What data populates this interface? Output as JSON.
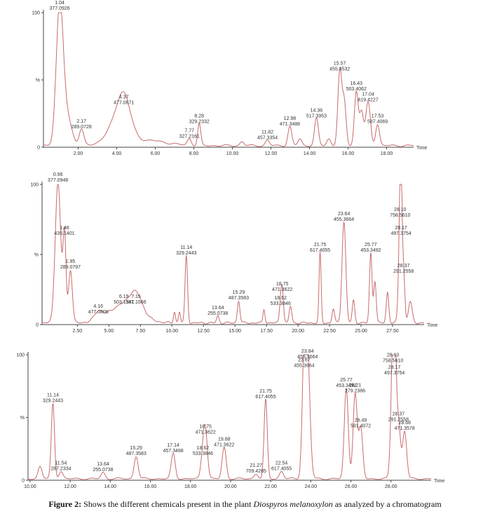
{
  "caption": {
    "label": "Figure 2:",
    "text_before": "Shows the different chemicals present in the plant",
    "species": "Diospyros melanoxylon",
    "text_after": "as analyzed by a chromatogram"
  },
  "chart_data": [
    {
      "type": "line",
      "title": "",
      "xlabel": "Time",
      "ylabel": "%",
      "y_tick_labels": [
        "100",
        "%",
        "0"
      ],
      "xlim": [
        0.2,
        19.4
      ],
      "ylim": [
        0,
        100
      ],
      "x_ticks": [
        2.0,
        4.0,
        6.0,
        8.0,
        10.0,
        12.0,
        14.0,
        16.0,
        18.0
      ],
      "x_tick_labels": [
        "2.00",
        "4.00",
        "6.00",
        "8.00",
        "10.00",
        "12.00",
        "14.00",
        "16.00",
        "18.00"
      ],
      "peaks": [
        {
          "rt": 1.04,
          "mz": "377.0926",
          "height": 100,
          "width": 0.18
        },
        {
          "rt": 1.4,
          "mz": "",
          "height": 22,
          "width": 0.25
        },
        {
          "rt": 2.17,
          "mz": "289.0728",
          "height": 12,
          "width": 0.12
        },
        {
          "rt": 4.37,
          "mz": "477.0671",
          "height": 30,
          "width": 0.35
        },
        {
          "rt": 3.9,
          "mz": "",
          "height": 12,
          "width": 0.5
        },
        {
          "rt": 5.5,
          "mz": "",
          "height": 4,
          "width": 1.0
        },
        {
          "rt": 7.77,
          "mz": "327.2161",
          "height": 5,
          "width": 0.1
        },
        {
          "rt": 8.28,
          "mz": "329.2332",
          "height": 16,
          "width": 0.08
        },
        {
          "rt": 10.5,
          "mz": "",
          "height": 3,
          "width": 0.1
        },
        {
          "rt": 11.82,
          "mz": "457.3354",
          "height": 4,
          "width": 0.1
        },
        {
          "rt": 12.98,
          "mz": "471.3488",
          "height": 14,
          "width": 0.1
        },
        {
          "rt": 13.5,
          "mz": "",
          "height": 5,
          "width": 0.1
        },
        {
          "rt": 14.36,
          "mz": "517.3953",
          "height": 20,
          "width": 0.1
        },
        {
          "rt": 15.0,
          "mz": "",
          "height": 5,
          "width": 0.1
        },
        {
          "rt": 15.57,
          "mz": "455.3532",
          "height": 55,
          "width": 0.1
        },
        {
          "rt": 15.8,
          "mz": "",
          "height": 32,
          "width": 0.1
        },
        {
          "rt": 16.43,
          "mz": "503.4062",
          "height": 40,
          "width": 0.1
        },
        {
          "rt": 16.7,
          "mz": "",
          "height": 25,
          "width": 0.1
        },
        {
          "rt": 17.04,
          "mz": "619.4227",
          "height": 32,
          "width": 0.12
        },
        {
          "rt": 17.53,
          "mz": "587.4069",
          "height": 16,
          "width": 0.1
        }
      ]
    },
    {
      "type": "line",
      "title": "",
      "xlabel": "Time",
      "ylabel": "%",
      "y_tick_labels": [
        "100",
        "%",
        "0"
      ],
      "xlim": [
        -0.3,
        30.0
      ],
      "ylim": [
        0,
        100
      ],
      "x_ticks": [
        2.5,
        5.0,
        7.5,
        10.0,
        12.5,
        15.0,
        17.5,
        20.0,
        22.5,
        25.0,
        27.5
      ],
      "x_tick_labels": [
        "2.50",
        "5.00",
        "7.50",
        "10.00",
        "12.50",
        "15.00",
        "17.50",
        "20.00",
        "22.50",
        "25.00",
        "27.50"
      ],
      "peaks": [
        {
          "rt": 0.96,
          "mz": "377.0948",
          "height": 100,
          "width": 0.22
        },
        {
          "rt": 1.48,
          "mz": "435.1401",
          "height": 62,
          "width": 0.12
        },
        {
          "rt": 1.95,
          "mz": "289.0797",
          "height": 38,
          "width": 0.15
        },
        {
          "rt": 4.16,
          "mz": "477.0806",
          "height": 6,
          "width": 0.3
        },
        {
          "rt": 6.19,
          "mz": "503.1341",
          "height": 13,
          "width": 1.2
        },
        {
          "rt": 7.15,
          "mz": "587.1566",
          "height": 13,
          "width": 0.5
        },
        {
          "rt": 10.2,
          "mz": "",
          "height": 8,
          "width": 0.08
        },
        {
          "rt": 10.6,
          "mz": "",
          "height": 8,
          "width": 0.08
        },
        {
          "rt": 11.14,
          "mz": "329.2443",
          "height": 48,
          "width": 0.1
        },
        {
          "rt": 13.64,
          "mz": "255.0738",
          "height": 5,
          "width": 0.1
        },
        {
          "rt": 15.29,
          "mz": "487.3583",
          "height": 16,
          "width": 0.1
        },
        {
          "rt": 17.3,
          "mz": "",
          "height": 10,
          "width": 0.08
        },
        {
          "rt": 18.62,
          "mz": "533.3846",
          "height": 12,
          "width": 0.1
        },
        {
          "rt": 18.75,
          "mz": "471.3622",
          "height": 22,
          "width": 0.1
        },
        {
          "rt": 19.4,
          "mz": "",
          "height": 12,
          "width": 0.1
        },
        {
          "rt": 21.75,
          "mz": "617.4055",
          "height": 50,
          "width": 0.08
        },
        {
          "rt": 22.8,
          "mz": "",
          "height": 10,
          "width": 0.1
        },
        {
          "rt": 23.64,
          "mz": "455.3664",
          "height": 72,
          "width": 0.15
        },
        {
          "rt": 24.4,
          "mz": "",
          "height": 16,
          "width": 0.1
        },
        {
          "rt": 25.77,
          "mz": "453.3492",
          "height": 50,
          "width": 0.1
        },
        {
          "rt": 26.1,
          "mz": "",
          "height": 30,
          "width": 0.1
        },
        {
          "rt": 27.1,
          "mz": "",
          "height": 22,
          "width": 0.1
        },
        {
          "rt": 28.1,
          "mz": "758.5610",
          "height": 75,
          "width": 0.12
        },
        {
          "rt": 28.17,
          "mz": "497.3754",
          "height": 62,
          "width": 0.08
        },
        {
          "rt": 28.37,
          "mz": "291.2558",
          "height": 35,
          "width": 0.1
        },
        {
          "rt": 28.9,
          "mz": "",
          "height": 15,
          "width": 0.15
        }
      ]
    },
    {
      "type": "line",
      "title": "",
      "xlabel": "Time",
      "ylabel": "%",
      "y_tick_labels": [
        "100",
        "%",
        "0"
      ],
      "xlim": [
        9.9,
        30.0
      ],
      "ylim": [
        0,
        100
      ],
      "x_ticks": [
        10.0,
        12.0,
        14.0,
        16.0,
        18.0,
        20.0,
        22.0,
        24.0,
        26.0,
        28.0
      ],
      "x_tick_labels": [
        "10.00",
        "12.00",
        "14.00",
        "16.00",
        "18.00",
        "20.00",
        "22.00",
        "24.00",
        "26.00",
        "28.00"
      ],
      "peaks": [
        {
          "rt": 10.5,
          "mz": "",
          "height": 10,
          "width": 0.1
        },
        {
          "rt": 11.14,
          "mz": "329.2443",
          "height": 60,
          "width": 0.08
        },
        {
          "rt": 11.54,
          "mz": "287.2334",
          "height": 6,
          "width": 0.1
        },
        {
          "rt": 13.64,
          "mz": "255.0738",
          "height": 5,
          "width": 0.1
        },
        {
          "rt": 15.29,
          "mz": "487.3583",
          "height": 18,
          "width": 0.1
        },
        {
          "rt": 17.14,
          "mz": "457.3488",
          "height": 20,
          "width": 0.1
        },
        {
          "rt": 18.62,
          "mz": "533.3846",
          "height": 18,
          "width": 0.1
        },
        {
          "rt": 18.75,
          "mz": "471.3622",
          "height": 35,
          "width": 0.1
        },
        {
          "rt": 19.68,
          "mz": "471.3622",
          "height": 25,
          "width": 0.1
        },
        {
          "rt": 21.27,
          "mz": "709.4285",
          "height": 4,
          "width": 0.1
        },
        {
          "rt": 21.75,
          "mz": "617.4055",
          "height": 63,
          "width": 0.08
        },
        {
          "rt": 22.54,
          "mz": "617.4055",
          "height": 6,
          "width": 0.1
        },
        {
          "rt": 23.67,
          "mz": "455.3664",
          "height": 88,
          "width": 0.1
        },
        {
          "rt": 23.84,
          "mz": "455.3664",
          "height": 95,
          "width": 0.12
        },
        {
          "rt": 25.77,
          "mz": "453.3492",
          "height": 72,
          "width": 0.1
        },
        {
          "rt": 26.21,
          "mz": "279.2386",
          "height": 68,
          "width": 0.1
        },
        {
          "rt": 26.49,
          "mz": "591.4072",
          "height": 40,
          "width": 0.1
        },
        {
          "rt": 28.1,
          "mz": "758.5610",
          "height": 92,
          "width": 0.1
        },
        {
          "rt": 28.17,
          "mz": "497.3754",
          "height": 82,
          "width": 0.08
        },
        {
          "rt": 28.37,
          "mz": "291.2558",
          "height": 45,
          "width": 0.1
        },
        {
          "rt": 28.68,
          "mz": "471.3578",
          "height": 38,
          "width": 0.1
        }
      ]
    }
  ]
}
